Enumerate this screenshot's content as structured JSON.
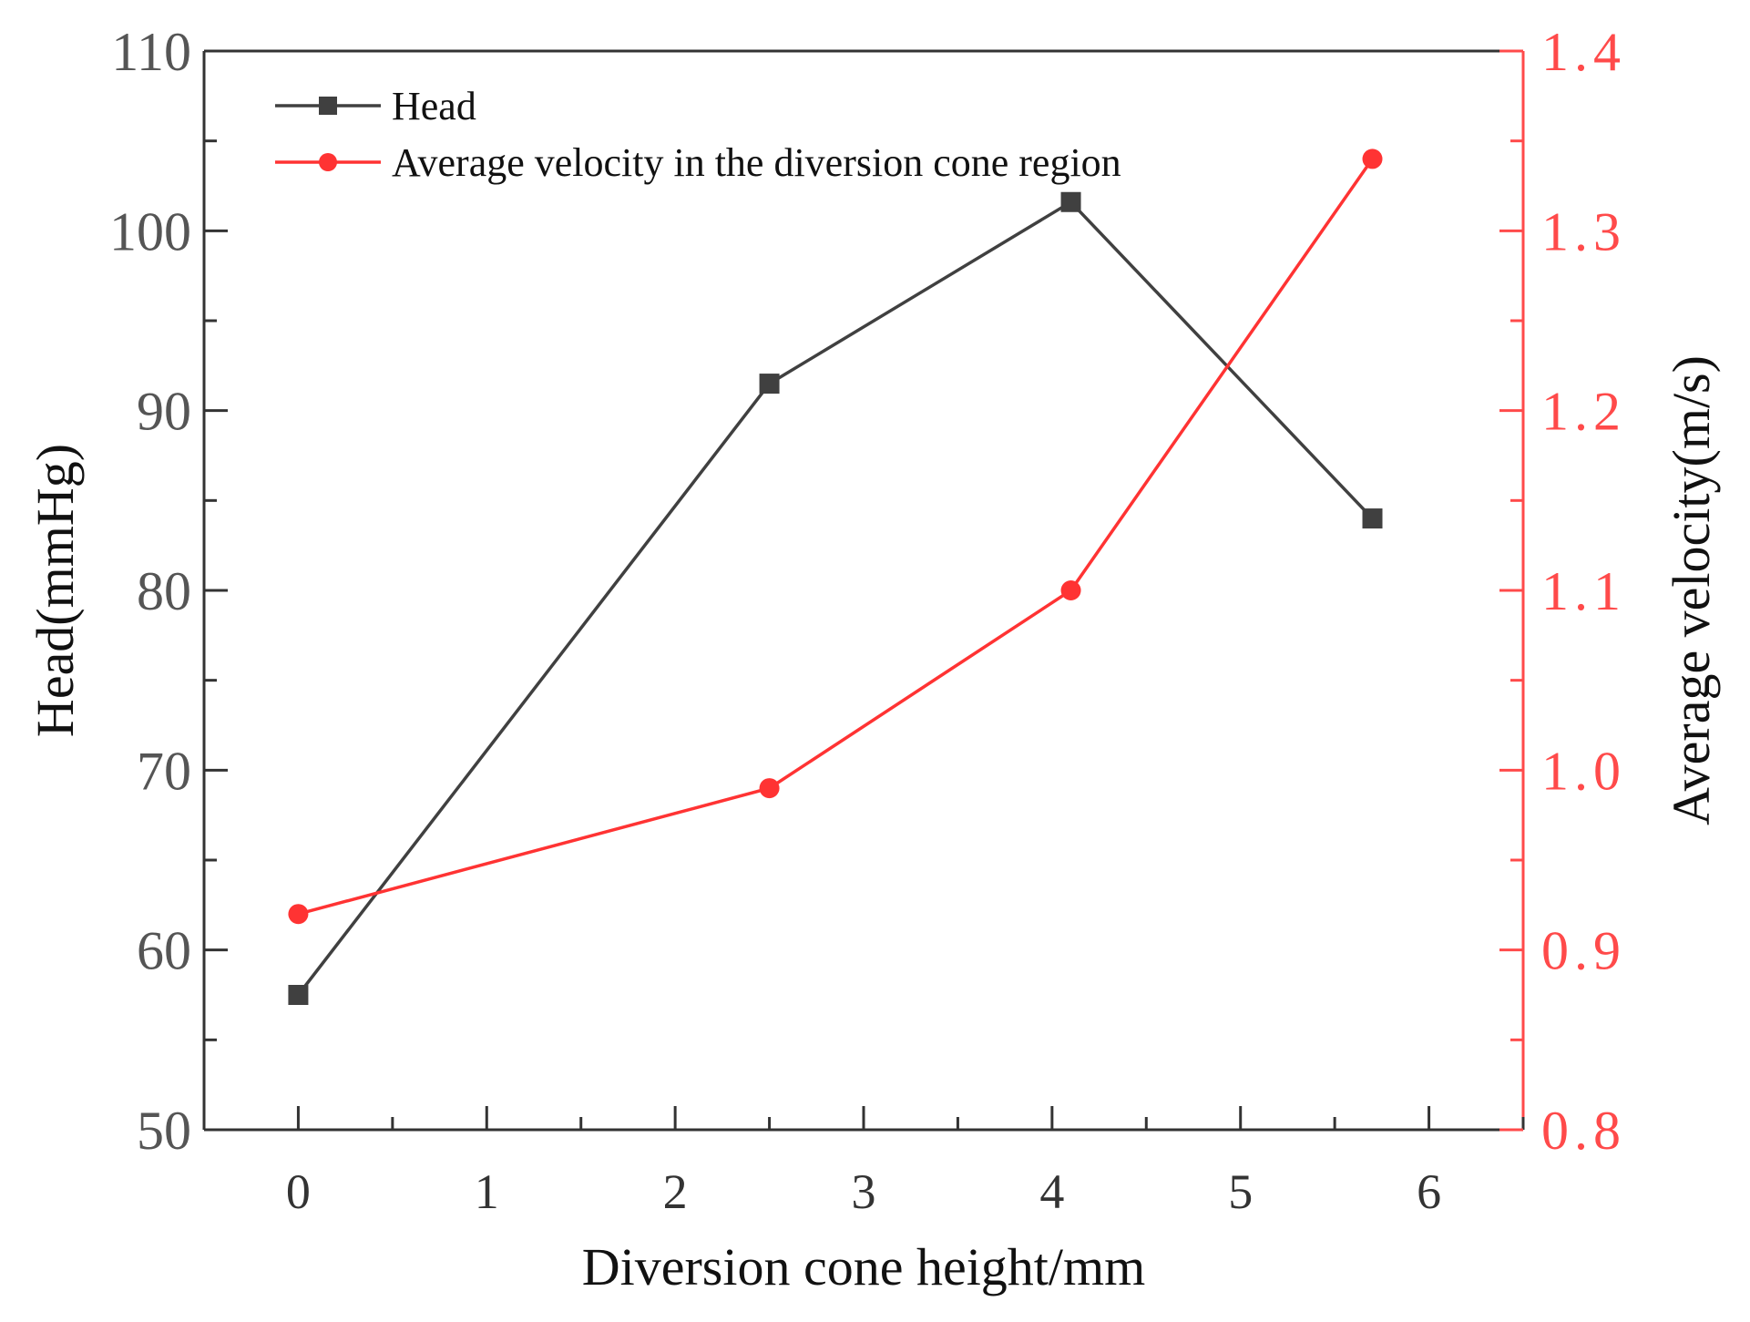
{
  "chart_data": {
    "type": "line",
    "title": "",
    "xlabel": "Diversion cone height/mm",
    "ylabel": "Head(mmHg)",
    "y2label": "Average velocity(m/s)",
    "xlim": [
      -0.5,
      6.5
    ],
    "ylim": [
      50,
      110
    ],
    "y2lim": [
      0.8,
      1.4
    ],
    "x_ticks": [
      0,
      1,
      2,
      3,
      4,
      5,
      6
    ],
    "x_tick_labels": [
      "0",
      "1",
      "2",
      "3",
      "4",
      "5",
      "6"
    ],
    "y_ticks": [
      50,
      60,
      70,
      80,
      90,
      100,
      110
    ],
    "y_tick_labels": [
      "50",
      "60",
      "70",
      "80",
      "90",
      "100",
      "110"
    ],
    "y2_ticks": [
      0.8,
      0.9,
      1.0,
      1.1,
      1.2,
      1.3,
      1.4
    ],
    "y2_tick_labels": [
      "0.8",
      "0.9",
      "1.0",
      "1.1",
      "1.2",
      "1.3",
      "1.4"
    ],
    "legend_position": "top-left",
    "grid": false,
    "series": [
      {
        "name": "Head",
        "axis": "left",
        "marker": "square",
        "color": "#404040",
        "x": [
          0,
          2.5,
          4.1,
          5.7
        ],
        "values": [
          57.5,
          91.5,
          101.6,
          84.0
        ]
      },
      {
        "name": "Average velocity in the diversion cone region",
        "axis": "right",
        "marker": "circle",
        "color": "#ff3333",
        "x": [
          0,
          2.5,
          4.1,
          5.7
        ],
        "values": [
          0.92,
          0.99,
          1.1,
          1.34
        ]
      }
    ]
  }
}
